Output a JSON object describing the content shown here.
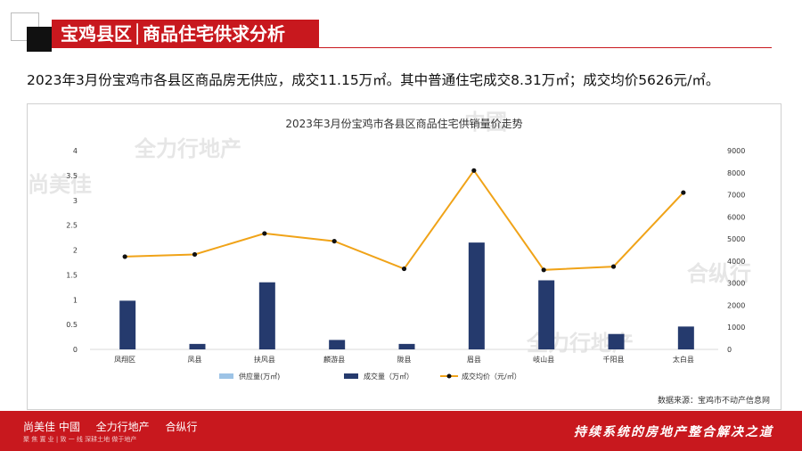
{
  "header": {
    "title": "宝鸡县区│商品住宅供求分析"
  },
  "summary": "2023年3月份宝鸡市各县区商品房无供应，成交11.15万㎡。其中普通住宅成交8.31万㎡；成交均价5626元/㎡。",
  "watermarks": [
    "尚美佳",
    "中國",
    "全力行地产",
    "合纵行"
  ],
  "chart_data": {
    "type": "bar",
    "title": "2023年3月份宝鸡市各县区商品住宅供销量价走势",
    "categories": [
      "凤翔区",
      "凤县",
      "扶风县",
      "麟游县",
      "陇县",
      "眉县",
      "岐山县",
      "千阳县",
      "太白县"
    ],
    "series": [
      {
        "name": "供应量(万㎡)",
        "type": "bar",
        "axis": "left",
        "color": "#9dc3e6",
        "values": [
          0,
          0,
          0,
          0,
          0,
          0,
          0,
          0,
          0
        ]
      },
      {
        "name": "成交量（万㎡）",
        "type": "bar",
        "axis": "left",
        "color": "#253a6d",
        "values": [
          0.98,
          0.11,
          1.35,
          0.19,
          0.11,
          2.15,
          1.39,
          0.31,
          0.46
        ]
      },
      {
        "name": "成交均价（元/㎡）",
        "type": "line",
        "axis": "right",
        "color": "#f0a318",
        "marker_color": "#111111",
        "values": [
          4200,
          4300,
          5250,
          4900,
          3650,
          8100,
          3600,
          3750,
          7100
        ]
      }
    ],
    "y_left": {
      "min": 0,
      "max": 4,
      "ticks": [
        "0",
        "0.5",
        "1",
        "1.5",
        "2",
        "2.5",
        "3",
        "3.5",
        "4"
      ]
    },
    "y_right": {
      "min": 0,
      "max": 9000,
      "ticks": [
        "0",
        "1000",
        "2000",
        "3000",
        "4000",
        "5000",
        "6000",
        "7000",
        "8000",
        "9000"
      ]
    },
    "grid": false,
    "legend_position": "bottom",
    "source": "数据来源：宝鸡市不动产信息网"
  },
  "footer": {
    "logos": [
      "尚美佳 中國",
      "全力行地产",
      "合纵行"
    ],
    "sub": "聚 焦 置 业 | 致 一 线   深耕土地 做于地产",
    "slogan": "持续系统的房地产整合解决之道"
  }
}
